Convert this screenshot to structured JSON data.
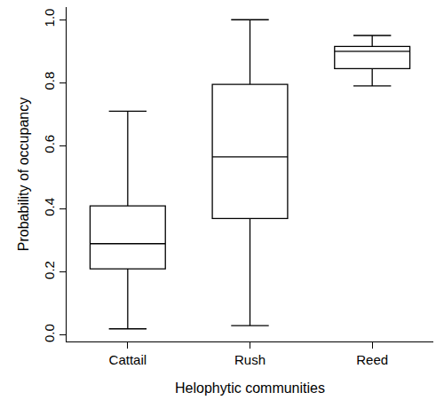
{
  "chart_data": {
    "type": "box",
    "x_label": "Helophytic communities",
    "y_label": "Probability of occupancy",
    "categories": [
      "Cattail",
      "Rush",
      "Reed"
    ],
    "min": [
      0.02,
      0.03,
      0.79
    ],
    "q1": [
      0.21,
      0.37,
      0.845
    ],
    "median": [
      0.29,
      0.565,
      0.9
    ],
    "q3": [
      0.41,
      0.795,
      0.915
    ],
    "max": [
      0.71,
      1.0,
      0.95
    ],
    "color": "#000000",
    "ylim": [
      -0.02,
      1.04
    ],
    "yticks": [
      {
        "value": 0,
        "label": "0.0"
      },
      0.2,
      0.4,
      0.6,
      0.8,
      {
        "value": 1,
        "label": "1.0"
      }
    ],
    "grid": false
  }
}
